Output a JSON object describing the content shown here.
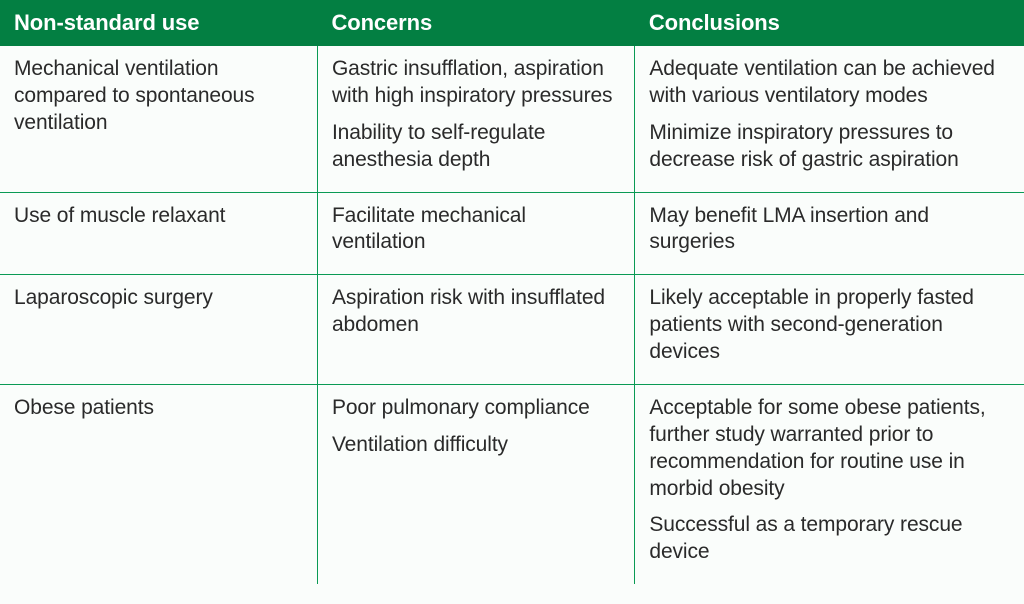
{
  "table": {
    "header_bg": "#037f42",
    "header_fg": "#ffffff",
    "border_color": "#0a9a54",
    "body_fg": "#2a2a2a",
    "body_bg": "#fafdfb",
    "font_size_header_pt": 16,
    "font_size_body_pt": 15,
    "columns": [
      {
        "key": "use",
        "label": "Non-standard use",
        "width_pct": 31
      },
      {
        "key": "concerns",
        "label": "Concerns",
        "width_pct": 31
      },
      {
        "key": "conclusions",
        "label": "Conclusions",
        "width_pct": 38
      }
    ],
    "rows": [
      {
        "use": [
          "Mechanical ventilation compared to spontaneous ventilation"
        ],
        "concerns": [
          "Gastric insufflation, aspiration with high inspiratory pressures",
          "Inability to self-regulate anesthesia depth"
        ],
        "conclusions": [
          "Adequate ventilation can be achieved with various ventilatory modes",
          "Minimize inspiratory pressures to decrease risk of gastric aspiration"
        ]
      },
      {
        "use": [
          "Use of muscle relaxant"
        ],
        "concerns": [
          "Facilitate mechanical ventilation"
        ],
        "conclusions": [
          "May benefit LMA insertion and surgeries"
        ]
      },
      {
        "use": [
          "Laparoscopic surgery"
        ],
        "concerns": [
          "Aspiration risk with insufflated abdomen"
        ],
        "conclusions": [
          "Likely acceptable in properly fasted patients with second-generation devices"
        ]
      },
      {
        "use": [
          "Obese patients"
        ],
        "concerns": [
          "Poor pulmonary compliance",
          "Ventilation difficulty"
        ],
        "conclusions": [
          "Acceptable for some obese patients, further study warranted prior to recommendation for routine use in morbid obesity",
          "Successful as a temporary rescue device"
        ]
      }
    ]
  }
}
